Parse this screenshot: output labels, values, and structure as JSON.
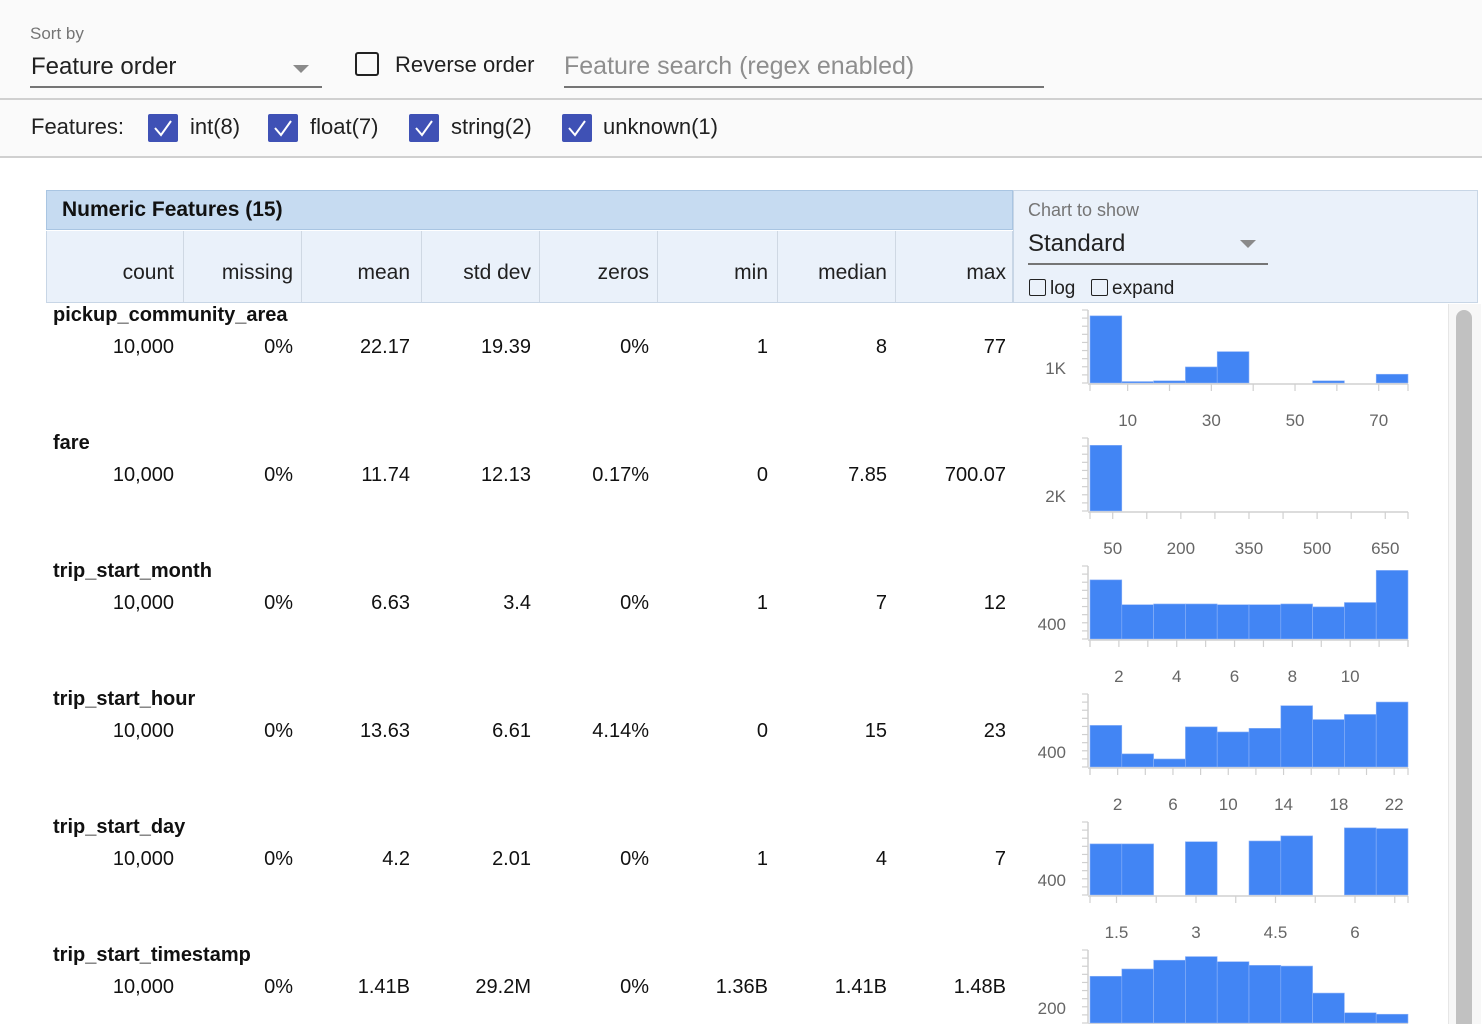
{
  "controls": {
    "sort_label": "Sort by",
    "sort_value": "Feature order",
    "reverse_label": "Reverse order",
    "reverse_checked": false,
    "search_placeholder": "Feature search (regex enabled)",
    "features_label": "Features:",
    "feature_types": [
      {
        "label": "int(8)",
        "checked": true
      },
      {
        "label": "float(7)",
        "checked": true
      },
      {
        "label": "string(2)",
        "checked": true
      },
      {
        "label": "unknown(1)",
        "checked": true
      }
    ]
  },
  "table": {
    "title": "Numeric Features (15)",
    "columns": [
      "count",
      "missing",
      "mean",
      "std dev",
      "zeros",
      "min",
      "median",
      "max"
    ],
    "chart_label": "Chart to show",
    "chart_value": "Standard",
    "log_label": "log",
    "expand_label": "expand",
    "rows": [
      {
        "name": "pickup_community_area",
        "values": [
          "10,000",
          "0%",
          "22.17",
          "19.39",
          "0%",
          "1",
          "8",
          "77"
        ]
      },
      {
        "name": "fare",
        "values": [
          "10,000",
          "0%",
          "11.74",
          "12.13",
          "0.17%",
          "0",
          "7.85",
          "700.07"
        ]
      },
      {
        "name": "trip_start_month",
        "values": [
          "10,000",
          "0%",
          "6.63",
          "3.4",
          "0%",
          "1",
          "7",
          "12"
        ]
      },
      {
        "name": "trip_start_hour",
        "values": [
          "10,000",
          "0%",
          "13.63",
          "6.61",
          "4.14%",
          "0",
          "15",
          "23"
        ]
      },
      {
        "name": "trip_start_day",
        "values": [
          "10,000",
          "0%",
          "4.2",
          "2.01",
          "0%",
          "1",
          "4",
          "7"
        ]
      },
      {
        "name": "trip_start_timestamp",
        "values": [
          "10,000",
          "0%",
          "1.41B",
          "29.2M",
          "0%",
          "1.36B",
          "1.41B",
          "1.48B"
        ]
      }
    ]
  },
  "colors": {
    "bar": "#4285f4",
    "header_band": "#c6dbf1",
    "header_bg": "#eaf1fa",
    "checkbox": "#3f51b5"
  },
  "chart_data": [
    {
      "type": "bar",
      "feature": "pickup_community_area",
      "xlim": [
        1,
        77
      ],
      "x_ticks": [
        "10",
        "30",
        "50",
        "70"
      ],
      "y_tick": "1K",
      "bins_relative_height": [
        0.92,
        0.02,
        0.03,
        0.22,
        0.43,
        0,
        0,
        0.03,
        0,
        0.12
      ]
    },
    {
      "type": "bar",
      "feature": "fare",
      "xlim": [
        0,
        700.07
      ],
      "x_ticks": [
        "50",
        "200",
        "350",
        "500",
        "650"
      ],
      "y_tick": "2K",
      "bins_relative_height": [
        0.9,
        0,
        0,
        0,
        0,
        0,
        0,
        0,
        0,
        0
      ]
    },
    {
      "type": "bar",
      "feature": "trip_start_month",
      "xlim": [
        1,
        12
      ],
      "x_ticks": [
        "2",
        "4",
        "6",
        "8",
        "10"
      ],
      "y_tick": "400",
      "bins_relative_height": [
        0.81,
        0.47,
        0.48,
        0.48,
        0.47,
        0.47,
        0.48,
        0.44,
        0.5,
        0.94
      ]
    },
    {
      "type": "bar",
      "feature": "trip_start_hour",
      "xlim": [
        0,
        23
      ],
      "x_ticks": [
        "2",
        "6",
        "10",
        "14",
        "18",
        "22"
      ],
      "y_tick": "400",
      "bins_relative_height": [
        0.57,
        0.18,
        0.11,
        0.55,
        0.48,
        0.53,
        0.84,
        0.65,
        0.72,
        0.89
      ]
    },
    {
      "type": "bar",
      "feature": "trip_start_day",
      "xlim": [
        1,
        7
      ],
      "x_ticks": [
        "1.5",
        "3",
        "4.5",
        "6"
      ],
      "y_tick": "400",
      "bins_relative_height": [
        0.7,
        0.7,
        0,
        0.73,
        0,
        0.74,
        0.81,
        0,
        0.92,
        0.91
      ]
    },
    {
      "type": "bar",
      "feature": "trip_start_timestamp",
      "xlim": [
        1360000000.0,
        1480000000.0
      ],
      "x_ticks": [],
      "y_tick": "200",
      "bins_relative_height": [
        0.64,
        0.74,
        0.86,
        0.91,
        0.84,
        0.79,
        0.78,
        0.41,
        0.14,
        0.12
      ]
    }
  ]
}
